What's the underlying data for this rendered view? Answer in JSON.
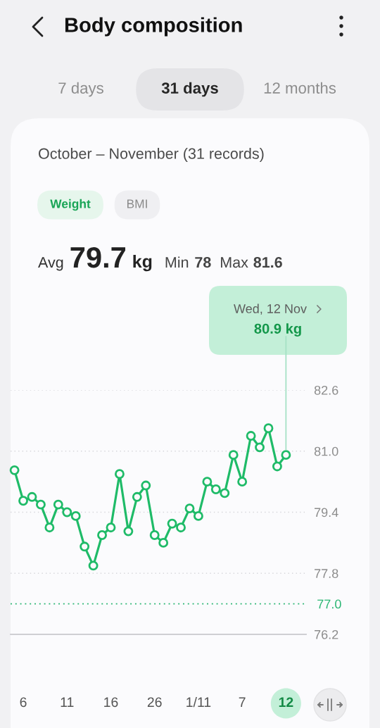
{
  "chart_data": {
    "type": "line",
    "title": "Body composition",
    "subtitle": "October – November (31 records)",
    "categories": [
      null,
      "6",
      null,
      null,
      null,
      null,
      "11",
      null,
      null,
      null,
      null,
      "16",
      null,
      null,
      null,
      null,
      "26",
      null,
      null,
      null,
      null,
      "1/11",
      null,
      null,
      null,
      null,
      "7",
      null,
      null,
      null,
      null,
      "12"
    ],
    "series": [
      {
        "color": "#1fbb68",
        "values": [
          80.5,
          79.7,
          79.8,
          79.6,
          79.0,
          79.6,
          79.4,
          79.3,
          78.5,
          78.0,
          78.8,
          79.0,
          80.4,
          78.9,
          79.8,
          80.1,
          78.8,
          78.6,
          79.1,
          79.0,
          79.5,
          79.3,
          80.2,
          80.0,
          79.9,
          80.9,
          80.2,
          81.4,
          81.1,
          81.6,
          80.6,
          80.9
        ]
      }
    ],
    "ylim": [
      76.2,
      82.6
    ],
    "yticks": [
      82.6,
      {
        "value": 81.0,
        "label": "81.0"
      },
      79.4,
      77.8,
      76.2
    ],
    "grid": "y",
    "marker": "circle",
    "line_style": "solid",
    "ref_lines": [
      {
        "axis": "y",
        "value": 77.0,
        "label": "77.0",
        "color": "#2ab673",
        "line_style": "dotted"
      }
    ],
    "annotations": [
      "7 days",
      "31 days",
      "12 months",
      "Weight",
      "BMI",
      "Avg",
      "79.7",
      "kg",
      "Min",
      "78",
      "Max",
      "81.6",
      "Wed, 12 Nov",
      {
        "text": "80.9 kg",
        "x": "12",
        "y": 80.9
      }
    ]
  }
}
